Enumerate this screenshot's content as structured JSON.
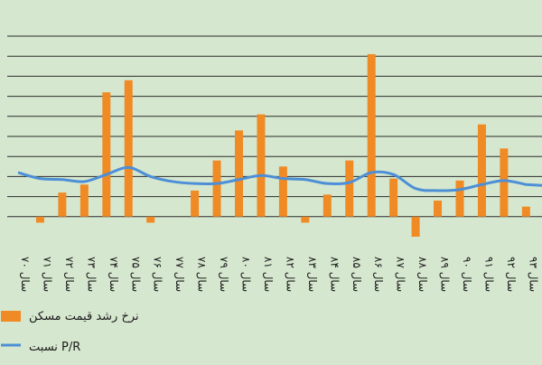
{
  "chart_data": {
    "type": "bar",
    "categories": [
      "سال ۷۰",
      "سال ۷۱",
      "سال ۷۲",
      "سال ۷۳",
      "سال ۷۴",
      "سال ۷۵",
      "سال ۷۶",
      "سال ۷۷",
      "سال ۷۸",
      "سال ۷۹",
      "سال ۸۰",
      "سال ۸۱",
      "سال ۸۲",
      "سال ۸۳",
      "سال ۸۴",
      "سال ۸۵",
      "سال ۸۶",
      "سال ۸۷",
      "سال ۸۸",
      "سال ۸۹",
      "سال ۹۰",
      "سال ۹۱",
      "سال ۹۲",
      "سال ۹۳"
    ],
    "ylim": [
      -1,
      9
    ],
    "grid": true,
    "legend_placement": "bottom-right",
    "colors": {
      "bars": "#f08a24",
      "line": "#4d8fd6",
      "grid": "#2b2b2b",
      "background": "#d6e7cf"
    },
    "series": [
      {
        "name": "نرخ رشد قیمت مسکن",
        "type": "bar",
        "values": [
          0,
          -0.3,
          1.2,
          1.6,
          6.2,
          6.8,
          -0.3,
          0,
          1.3,
          2.8,
          4.3,
          5.1,
          2.5,
          -0.3,
          1.1,
          2.8,
          8.1,
          1.9,
          -1.0,
          0.8,
          1.8,
          4.6,
          3.4,
          0.5
        ]
      },
      {
        "name": "نسبت P/R",
        "type": "line",
        "values": [
          2.2,
          1.9,
          1.85,
          1.75,
          2.1,
          2.45,
          2.0,
          1.75,
          1.65,
          1.65,
          1.85,
          2.05,
          1.9,
          1.85,
          1.65,
          1.7,
          2.2,
          2.1,
          1.4,
          1.3,
          1.35,
          1.6,
          1.8,
          1.6
        ]
      }
    ]
  }
}
